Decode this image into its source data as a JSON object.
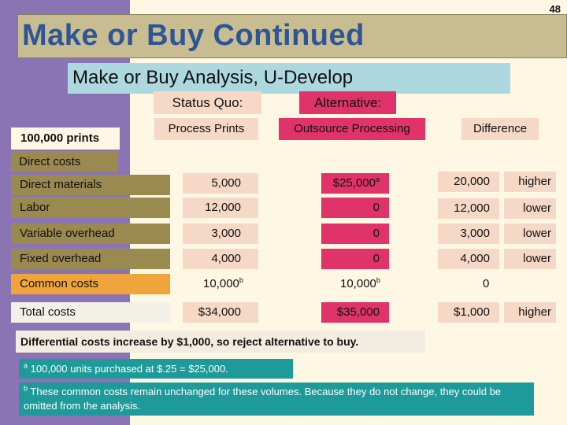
{
  "page_number": "48",
  "title": "Make or Buy Continued",
  "subtitle": "Make or Buy Analysis, U-Develop",
  "status_quo_label": "Status Quo:",
  "alternative_label": "Alternative:",
  "quantity_label": "100,000 prints",
  "columns": {
    "status_quo": "Process Prints",
    "alternative": "Outsource Processing",
    "difference": "Difference"
  },
  "direct_costs_label": "Direct costs",
  "rows": [
    {
      "label": "Direct materials",
      "status_quo": "5,000",
      "alternative": "$25,000",
      "alt_sup": "a",
      "difference": "20,000",
      "direction": "higher"
    },
    {
      "label": "Labor",
      "status_quo": "12,000",
      "alternative": "0",
      "difference": "12,000",
      "direction": "lower"
    },
    {
      "label": "Variable overhead",
      "status_quo": "3,000",
      "alternative": "0",
      "difference": "3,000",
      "direction": "lower"
    },
    {
      "label": "Fixed overhead",
      "status_quo": "4,000",
      "alternative": "0",
      "difference": "4,000",
      "direction": "lower"
    }
  ],
  "common_costs": {
    "label": "Common costs",
    "status_quo": "10,000",
    "status_quo_sup": "b",
    "alternative": "10,000",
    "alternative_sup": "b",
    "difference": "0"
  },
  "total_costs": {
    "label": "Total costs",
    "status_quo": "$34,000",
    "alternative": "$35,000",
    "difference": "$1,000",
    "direction": "higher"
  },
  "conclusion": "Differential costs increase by $1,000, so reject alternative to buy.",
  "footnote_a": {
    "marker": "a",
    "text": "100,000 units purchased at $.25 = $25,000."
  },
  "footnote_b": {
    "marker": "b",
    "text": "These common costs remain unchanged for these volumes. Because they do not change, they could be omitted from the analysis."
  },
  "colors": {
    "stripe": "#8b74b4",
    "title_text": "#2f5597",
    "title_bar": "#c8bd91",
    "subtitle_bar": "#aed8e0",
    "status_quo_fill": "#f5d8c5",
    "alternative_fill": "#e0336a",
    "row_label_fill": "#9a8a50",
    "common_costs_fill": "#f0a43c",
    "footnote_fill": "#1e9a9a"
  }
}
